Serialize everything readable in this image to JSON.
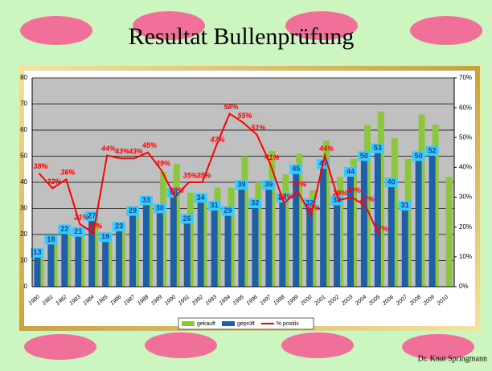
{
  "title": "Resultat Bullenprüfung",
  "footer": "Dr. Knut Springmann",
  "chart_data": {
    "type": "bar_line",
    "categories": [
      "1980",
      "1981",
      "1982",
      "1983",
      "1984",
      "1985",
      "1986",
      "1987",
      "1988",
      "1989",
      "1990",
      "1991",
      "1992",
      "1993",
      "1994",
      "1995",
      "1996",
      "1997",
      "1998",
      "1999",
      "2000",
      "2001",
      "2002",
      "2003",
      "2004",
      "2005",
      "2006",
      "2007",
      "2008",
      "2009",
      "2010"
    ],
    "series": [
      {
        "name": "gekauft",
        "color": "#8cc63f",
        "type": "bar",
        "values": [
          13,
          18,
          22,
          21,
          27,
          19,
          23,
          29,
          33,
          44,
          47,
          36,
          35,
          38,
          38,
          50,
          40,
          52,
          43,
          51,
          37,
          56,
          42,
          49,
          62,
          67,
          57,
          49,
          66,
          62,
          42
        ]
      },
      {
        "name": "geprüft",
        "color": "#1f5fa8",
        "type": "bar",
        "values": [
          13,
          18,
          22,
          21,
          27,
          19,
          23,
          29,
          33,
          30,
          36,
          26,
          34,
          31,
          29,
          39,
          32,
          39,
          34,
          45,
          32,
          47,
          33,
          44,
          50,
          53,
          40,
          31,
          50,
          52,
          null
        ]
      },
      {
        "name": "% positiv",
        "color": "#ff0000",
        "type": "line",
        "axis": "y2",
        "values": [
          38,
          33,
          36,
          21,
          18,
          44,
          43,
          43,
          45,
          39,
          30,
          35,
          35,
          47,
          58,
          55,
          51,
          41,
          28,
          32,
          24,
          44,
          29,
          30,
          27,
          17,
          null,
          null,
          null,
          null,
          null
        ],
        "value_labels": [
          "38%",
          "33%",
          "36%",
          "21%",
          "18%",
          "44%",
          "43%",
          "43%",
          "45%",
          "39%",
          "30%",
          "35%",
          "35%",
          "47%",
          "58%",
          "55%",
          "51%",
          "41%",
          "28%",
          "32%",
          "24%",
          "44%",
          "29%",
          "30%",
          "27%",
          "17%",
          null,
          null,
          null,
          null,
          null
        ]
      }
    ],
    "ylim": [
      0,
      80
    ],
    "yticks": [
      0,
      10,
      20,
      30,
      40,
      50,
      60,
      70,
      80
    ],
    "y2lim": [
      0,
      70
    ],
    "y2ticks": [
      {
        "value": 0,
        "label": "0%"
      },
      {
        "value": 10,
        "label": "10%"
      },
      {
        "value": 20,
        "label": "20%"
      },
      {
        "value": 30,
        "label": "30%"
      },
      {
        "value": 40,
        "label": "40%"
      },
      {
        "value": 50,
        "label": "50%"
      },
      {
        "value": 60,
        "label": "60%"
      },
      {
        "value": 70,
        "label": "70%"
      }
    ],
    "grid": true,
    "legend": "bottom"
  }
}
